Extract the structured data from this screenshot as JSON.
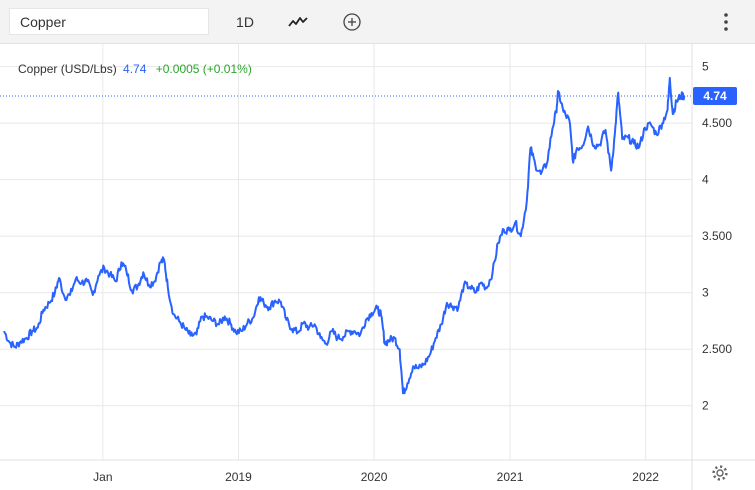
{
  "toolbar": {
    "symbol_value": "Copper",
    "interval_label": "1D",
    "chart_type_icon": "line-chart-icon",
    "compare_icon": "plus-circle-icon",
    "more_icon": "kebab-menu-icon"
  },
  "legend": {
    "name": "Copper (USD/Lbs)",
    "price": "4.74",
    "change": "+0.0005 (+0.01%)"
  },
  "price_tag": "4.74",
  "colors": {
    "line": "#2962ff",
    "up": "#2ba52b",
    "grid": "#e8e8e8"
  },
  "chart_data": {
    "type": "line",
    "title": "Copper (USD/Lbs)",
    "xlabel": "",
    "ylabel": "",
    "x_ticks": [
      {
        "label": "Jan",
        "x": "2018-01-01"
      },
      {
        "label": "2019",
        "x": "2019-01-01"
      },
      {
        "label": "2020",
        "x": "2020-01-01"
      },
      {
        "label": "2021",
        "x": "2021-01-01"
      },
      {
        "label": "2022",
        "x": "2022-01-01"
      }
    ],
    "y_ticks": [
      {
        "label": "2",
        "value": 2
      },
      {
        "label": "2.500",
        "value": 2.5
      },
      {
        "label": "3",
        "value": 3
      },
      {
        "label": "3.500",
        "value": 3.5
      },
      {
        "label": "4",
        "value": 4
      },
      {
        "label": "4.500",
        "value": 4.5
      },
      {
        "label": "5",
        "value": 5
      }
    ],
    "xlim": [
      "2017-04-10",
      "2022-04-25"
    ],
    "ylim": [
      1.52,
      5.2
    ],
    "grid": true,
    "last_value": 4.74,
    "series": [
      {
        "name": "Copper",
        "points": [
          [
            "2017-04-10",
            2.66
          ],
          [
            "2017-04-25",
            2.56
          ],
          [
            "2017-05-10",
            2.52
          ],
          [
            "2017-05-25",
            2.57
          ],
          [
            "2017-06-10",
            2.6
          ],
          [
            "2017-06-25",
            2.66
          ],
          [
            "2017-07-10",
            2.69
          ],
          [
            "2017-07-25",
            2.85
          ],
          [
            "2017-08-10",
            2.91
          ],
          [
            "2017-08-25",
            3.0
          ],
          [
            "2017-09-05",
            3.13
          ],
          [
            "2017-09-20",
            2.96
          ],
          [
            "2017-10-05",
            2.98
          ],
          [
            "2017-10-20",
            3.12
          ],
          [
            "2017-11-05",
            3.09
          ],
          [
            "2017-11-20",
            3.1
          ],
          [
            "2017-12-05",
            2.98
          ],
          [
            "2017-12-20",
            3.15
          ],
          [
            "2018-01-05",
            3.22
          ],
          [
            "2018-01-20",
            3.16
          ],
          [
            "2018-02-05",
            3.1
          ],
          [
            "2018-02-20",
            3.27
          ],
          [
            "2018-03-05",
            3.2
          ],
          [
            "2018-03-20",
            3.02
          ],
          [
            "2018-04-05",
            3.06
          ],
          [
            "2018-04-20",
            3.18
          ],
          [
            "2018-05-05",
            3.07
          ],
          [
            "2018-05-20",
            3.1
          ],
          [
            "2018-06-05",
            3.27
          ],
          [
            "2018-06-15",
            3.29
          ],
          [
            "2018-06-25",
            3.05
          ],
          [
            "2018-07-10",
            2.81
          ],
          [
            "2018-07-25",
            2.75
          ],
          [
            "2018-08-10",
            2.68
          ],
          [
            "2018-08-25",
            2.62
          ],
          [
            "2018-09-10",
            2.63
          ],
          [
            "2018-09-25",
            2.79
          ],
          [
            "2018-10-10",
            2.78
          ],
          [
            "2018-10-25",
            2.75
          ],
          [
            "2018-11-10",
            2.72
          ],
          [
            "2018-11-25",
            2.79
          ],
          [
            "2018-12-10",
            2.73
          ],
          [
            "2018-12-25",
            2.65
          ],
          [
            "2019-01-10",
            2.66
          ],
          [
            "2019-01-25",
            2.73
          ],
          [
            "2019-02-10",
            2.78
          ],
          [
            "2019-02-25",
            2.96
          ],
          [
            "2019-03-10",
            2.91
          ],
          [
            "2019-03-25",
            2.87
          ],
          [
            "2019-04-10",
            2.93
          ],
          [
            "2019-04-25",
            2.92
          ],
          [
            "2019-05-10",
            2.76
          ],
          [
            "2019-05-25",
            2.68
          ],
          [
            "2019-06-10",
            2.65
          ],
          [
            "2019-06-25",
            2.73
          ],
          [
            "2019-07-10",
            2.69
          ],
          [
            "2019-07-25",
            2.72
          ],
          [
            "2019-08-10",
            2.6
          ],
          [
            "2019-08-25",
            2.55
          ],
          [
            "2019-09-10",
            2.66
          ],
          [
            "2019-09-25",
            2.6
          ],
          [
            "2019-10-10",
            2.61
          ],
          [
            "2019-10-25",
            2.66
          ],
          [
            "2019-11-10",
            2.66
          ],
          [
            "2019-11-25",
            2.63
          ],
          [
            "2019-12-10",
            2.76
          ],
          [
            "2019-12-25",
            2.82
          ],
          [
            "2020-01-10",
            2.86
          ],
          [
            "2020-01-20",
            2.8
          ],
          [
            "2020-01-30",
            2.55
          ],
          [
            "2020-02-10",
            2.58
          ],
          [
            "2020-02-25",
            2.6
          ],
          [
            "2020-03-10",
            2.5
          ],
          [
            "2020-03-19",
            2.11
          ],
          [
            "2020-03-31",
            2.2
          ],
          [
            "2020-04-15",
            2.35
          ],
          [
            "2020-04-30",
            2.33
          ],
          [
            "2020-05-15",
            2.37
          ],
          [
            "2020-05-30",
            2.45
          ],
          [
            "2020-06-15",
            2.6
          ],
          [
            "2020-06-30",
            2.72
          ],
          [
            "2020-07-15",
            2.91
          ],
          [
            "2020-07-30",
            2.88
          ],
          [
            "2020-08-15",
            2.87
          ],
          [
            "2020-08-30",
            3.07
          ],
          [
            "2020-09-15",
            3.05
          ],
          [
            "2020-09-30",
            3.0
          ],
          [
            "2020-10-15",
            3.09
          ],
          [
            "2020-10-30",
            3.04
          ],
          [
            "2020-11-15",
            3.18
          ],
          [
            "2020-11-30",
            3.44
          ],
          [
            "2020-12-15",
            3.56
          ],
          [
            "2020-12-30",
            3.55
          ],
          [
            "2021-01-15",
            3.62
          ],
          [
            "2021-01-30",
            3.5
          ],
          [
            "2021-02-15",
            3.81
          ],
          [
            "2021-02-25",
            4.28
          ],
          [
            "2021-03-10",
            4.13
          ],
          [
            "2021-03-25",
            4.05
          ],
          [
            "2021-04-10",
            4.14
          ],
          [
            "2021-04-25",
            4.45
          ],
          [
            "2021-05-05",
            4.6
          ],
          [
            "2021-05-11",
            4.78
          ],
          [
            "2021-05-25",
            4.6
          ],
          [
            "2021-06-10",
            4.52
          ],
          [
            "2021-06-20",
            4.15
          ],
          [
            "2021-06-30",
            4.28
          ],
          [
            "2021-07-15",
            4.3
          ],
          [
            "2021-07-30",
            4.47
          ],
          [
            "2021-08-15",
            4.3
          ],
          [
            "2021-08-30",
            4.31
          ],
          [
            "2021-09-15",
            4.44
          ],
          [
            "2021-09-30",
            4.08
          ],
          [
            "2021-10-10",
            4.4
          ],
          [
            "2021-10-19",
            4.77
          ],
          [
            "2021-10-30",
            4.36
          ],
          [
            "2021-11-15",
            4.37
          ],
          [
            "2021-11-30",
            4.32
          ],
          [
            "2021-12-15",
            4.29
          ],
          [
            "2021-12-30",
            4.46
          ],
          [
            "2022-01-15",
            4.49
          ],
          [
            "2022-01-30",
            4.4
          ],
          [
            "2022-02-15",
            4.5
          ],
          [
            "2022-03-01",
            4.62
          ],
          [
            "2022-03-07",
            4.9
          ],
          [
            "2022-03-15",
            4.58
          ],
          [
            "2022-03-25",
            4.69
          ],
          [
            "2022-04-05",
            4.74
          ],
          [
            "2022-04-15",
            4.74
          ]
        ]
      }
    ]
  }
}
